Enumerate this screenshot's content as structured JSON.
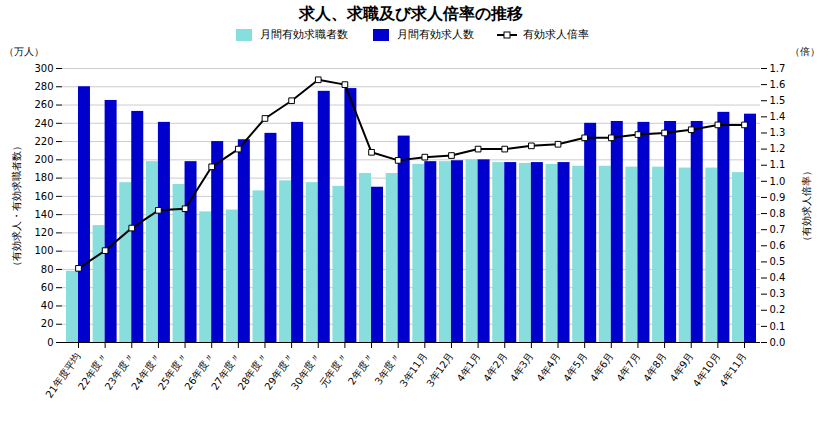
{
  "chart_data": {
    "type": "bar",
    "title": "求人、求職及び求人倍率の推移",
    "ylabel": "（万人）",
    "y2label": "（倍）",
    "annotations": [
      {
        "text": "（有効求人・有効求職者数）",
        "axis": "y"
      },
      {
        "text": "（有効求人倍率）",
        "axis": "y2"
      }
    ],
    "categories": [
      "21年度平均",
      "22年度〃",
      "23年度〃",
      "24年度〃",
      "25年度〃",
      "26年度〃",
      "27年度〃",
      "28年度〃",
      "29年度〃",
      "30年度〃",
      "元年度〃",
      "2年度〃",
      "3年度〃",
      "3年11月",
      "3年12月",
      "4年1月",
      "4年2月",
      "4年3月",
      "4年4月",
      "4年5月",
      "4年6月",
      "4年7月",
      "4年8月",
      "4年9月",
      "4年10月",
      "4年11月"
    ],
    "series": [
      {
        "name": "月間有効求職者数",
        "type": "bar",
        "color": "#88DDDD",
        "values": [
          78,
          128,
          175,
          198,
          173,
          143,
          145,
          166,
          177,
          175,
          171,
          185,
          185,
          195,
          198,
          200,
          197,
          196,
          195,
          193,
          193,
          192,
          192,
          191,
          191,
          186
        ]
      },
      {
        "name": "月間有効求人数",
        "type": "bar",
        "color": "#0000CC",
        "values": [
          280,
          265,
          253,
          241,
          198,
          220,
          222,
          229,
          241,
          275,
          278,
          170,
          226,
          198,
          199,
          200,
          197,
          197,
          197,
          240,
          242,
          241,
          242,
          242,
          252,
          250
        ]
      },
      {
        "name": "有効求人倍率",
        "type": "line",
        "axis": "y2",
        "color": "#000000",
        "marker": "square",
        "line_style": "solid",
        "values": [
          0.46,
          0.57,
          0.71,
          0.82,
          0.83,
          1.09,
          1.2,
          1.39,
          1.5,
          1.63,
          1.6,
          1.18,
          1.13,
          1.15,
          1.16,
          1.2,
          1.2,
          1.22,
          1.23,
          1.27,
          1.27,
          1.29,
          1.3,
          1.32,
          1.35,
          1.35
        ]
      }
    ],
    "ylim": [
      0,
      300
    ],
    "yticks": [
      0,
      20,
      40,
      60,
      80,
      100,
      120,
      140,
      160,
      180,
      200,
      220,
      240,
      260,
      280,
      300
    ],
    "y2lim": [
      0.0,
      1.7
    ],
    "y2ticks": [
      {
        "value": 0,
        "label": "0.0"
      },
      0.1,
      0.2,
      0.3,
      0.4,
      0.5,
      0.6,
      0.7,
      0.8,
      0.9,
      {
        "value": 1,
        "label": "1.0"
      },
      1.1,
      1.2,
      1.3,
      1.4,
      1.5,
      1.6,
      1.7
    ],
    "grid": true,
    "legend": "top"
  }
}
